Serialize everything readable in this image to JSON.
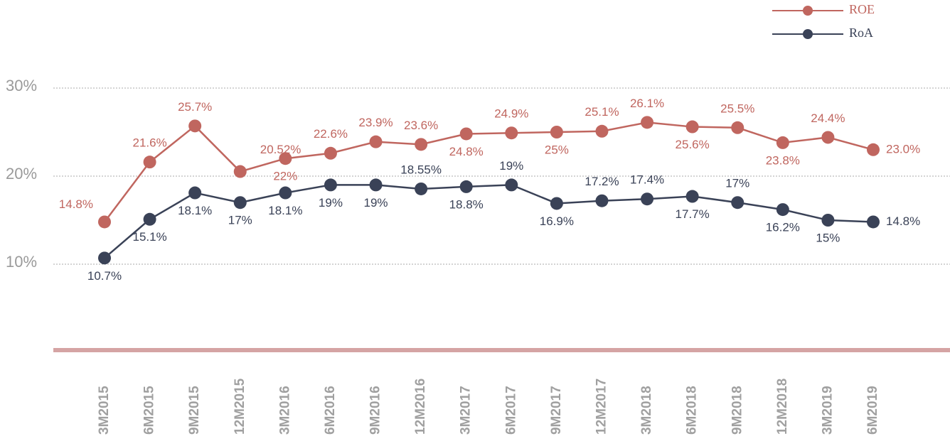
{
  "chart_data": {
    "type": "line",
    "categories": [
      "3M2015",
      "6M2015",
      "9M2015",
      "12M2015",
      "3M2016",
      "6M2016",
      "9M2016",
      "12M2016",
      "3M2017",
      "6M2017",
      "9M2017",
      "12M2017",
      "3M2018",
      "6M2018",
      "9M2018",
      "12M2018",
      "3M2019",
      "6M2019"
    ],
    "series": [
      {
        "name": "ROE",
        "color": "#c0665f",
        "values": [
          14.8,
          21.6,
          25.7,
          20.52,
          22,
          22.6,
          23.9,
          23.6,
          24.8,
          24.9,
          25,
          25.1,
          26.1,
          25.6,
          25.5,
          23.8,
          24.4,
          23.0
        ],
        "value_labels": [
          "14.8%",
          "21.6%",
          "25.7%",
          "20.52%",
          "22%",
          "22.6%",
          "23.9%",
          "23.6%",
          "24.8%",
          "24.9%",
          "25%",
          "25.1%",
          "26.1%",
          "25.6%",
          "25.5%",
          "23.8%",
          "24.4%",
          "23.0%"
        ]
      },
      {
        "name": "RoA",
        "color": "#3a4257",
        "values": [
          10.7,
          15.1,
          18.1,
          17,
          18.1,
          19,
          19,
          18.55,
          18.8,
          19,
          16.9,
          17.2,
          17.4,
          17.7,
          17,
          16.2,
          15,
          14.8
        ],
        "value_labels": [
          "10.7%",
          "15.1%",
          "18.1%",
          "17%",
          "18.1%",
          "19%",
          "19%",
          "18.55%",
          "18.8%",
          "19%",
          "16.9%",
          "17.2%",
          "17.4%",
          "17.7%",
          "17%",
          "16.2%",
          "15%",
          "14.8%"
        ]
      }
    ],
    "ylim": [
      0,
      30
    ],
    "yticks": [
      {
        "value": 10,
        "label": "10%"
      },
      {
        "value": 20,
        "label": "20%"
      },
      {
        "value": 30,
        "label": "30%"
      }
    ],
    "grid": true,
    "legend": "top-right"
  }
}
